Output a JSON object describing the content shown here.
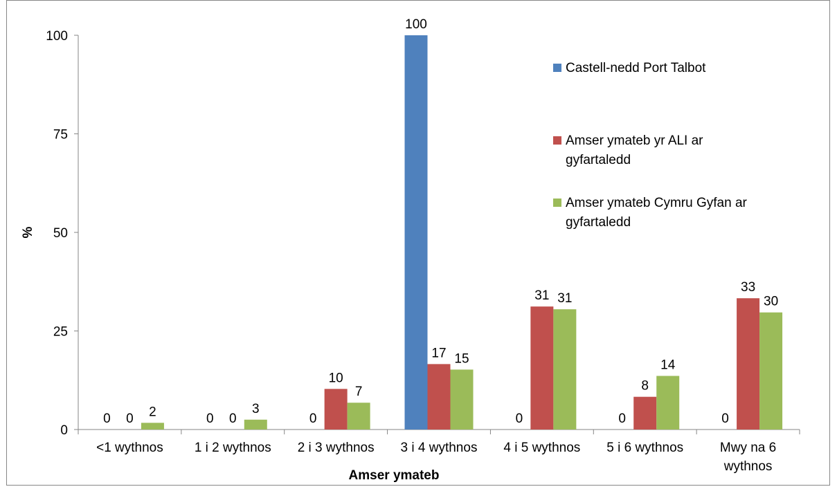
{
  "chart_data": {
    "type": "bar",
    "title": "",
    "xlabel": "Amser ymateb",
    "ylabel": "%",
    "ylim": [
      0,
      100
    ],
    "yticks": [
      0,
      25,
      50,
      75,
      100
    ],
    "ytick_labels": [
      "0",
      "25",
      "50",
      "75",
      "100"
    ],
    "grid": false,
    "legend_position": "right",
    "categories": [
      [
        "<1 wythnos"
      ],
      [
        "1 i 2 wythnos"
      ],
      [
        "2 i 3 wythnos"
      ],
      [
        "3 i 4 wythnos"
      ],
      [
        "4 i 5 wythnos"
      ],
      [
        "5 i 6 wythnos"
      ],
      [
        "Mwy na 6",
        "wythnos"
      ]
    ],
    "series": [
      {
        "name": "Castell-nedd Port Talbot",
        "name_lines": [
          "Castell-nedd Port Talbot"
        ],
        "color": "#4F81BD",
        "values": [
          0,
          0,
          0,
          100,
          0,
          0,
          0
        ],
        "labels": [
          "0",
          "0",
          "0",
          "100",
          "0",
          "0",
          "0"
        ]
      },
      {
        "name": "Amser ymateb yr ALI ar gyfartaledd",
        "name_lines": [
          "Amser ymateb yr ALI ar",
          "gyfartaledd"
        ],
        "color": "#C0504D",
        "values": [
          0,
          0,
          10.3,
          16.6,
          31.2,
          8.3,
          33.3
        ],
        "labels": [
          "0",
          "0",
          "10",
          "17",
          "31",
          "8",
          "33"
        ]
      },
      {
        "name": "Amser ymateb Cymru Gyfan ar gyfartaledd",
        "name_lines": [
          "Amser ymateb Cymru Gyfan ar",
          "gyfartaledd"
        ],
        "color": "#9BBB59",
        "values": [
          1.7,
          2.5,
          6.8,
          15.2,
          30.5,
          13.6,
          29.7
        ],
        "labels": [
          "2",
          "3",
          "7",
          "15",
          "31",
          "14",
          "30"
        ]
      }
    ]
  }
}
